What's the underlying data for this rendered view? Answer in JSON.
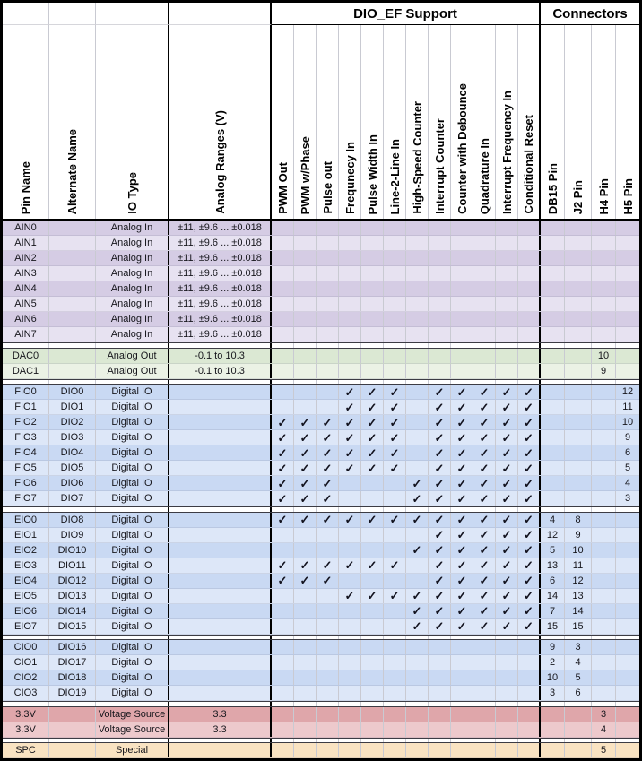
{
  "table": {
    "group_headers": {
      "dio_ef": "DIO_EF Support",
      "connectors": "Connectors"
    },
    "check_glyph": "✓",
    "columns": [
      {
        "id": "pin-name",
        "label": "Pin Name"
      },
      {
        "id": "alternate-name",
        "label": "Alternate Name"
      },
      {
        "id": "io-type",
        "label": "IO Type"
      },
      {
        "id": "analog-ranges",
        "label": "Analog Ranges (V)"
      },
      {
        "id": "pwm-out",
        "label": "PWM Out"
      },
      {
        "id": "pwm-w-phase",
        "label": "PWM w/Phase"
      },
      {
        "id": "pulse-out",
        "label": "Pulse out"
      },
      {
        "id": "frequency-in",
        "label": "Frequnecy In"
      },
      {
        "id": "pulse-width-in",
        "label": "Pulse Width In"
      },
      {
        "id": "line-2-line-in",
        "label": "Line-2-Line In"
      },
      {
        "id": "high-speed-counter",
        "label": "High-Speed Counter"
      },
      {
        "id": "interrupt-counter",
        "label": "Interrupt Counter"
      },
      {
        "id": "counter-with-debounce",
        "label": "Counter with Debounce"
      },
      {
        "id": "quadrature-in",
        "label": "Quadrature In"
      },
      {
        "id": "interrupt-frequency-in",
        "label": "Interrupt Frequency In"
      },
      {
        "id": "conditional-reset",
        "label": "Conditional Reset"
      },
      {
        "id": "db15-pin",
        "label": "DB15 Pin"
      },
      {
        "id": "j2-pin",
        "label": "J2 Pin"
      },
      {
        "id": "h4-pin",
        "label": "H4 Pin"
      },
      {
        "id": "h5-pin",
        "label": "H5 Pin"
      }
    ],
    "themes": {
      "purple": {
        "dark": "#D5CCE4",
        "light": "#E7E2F1"
      },
      "green": {
        "dark": "#DBE8D3",
        "light": "#EBF2E5"
      },
      "blue": {
        "dark": "#C9D9F3",
        "light": "#DDE7F8"
      },
      "pink": {
        "dark": "#DFA6AA",
        "light": "#EDC9CC"
      },
      "tan": {
        "dark": "#F9E3C2",
        "light": "#F9E3C2"
      }
    },
    "groups": [
      {
        "name": "analog-in",
        "theme": "purple",
        "rows": [
          {
            "pin": "AIN0",
            "type": "Analog In",
            "range": "±11, ±9.6 ... ±0.018"
          },
          {
            "pin": "AIN1",
            "type": "Analog In",
            "range": "±11, ±9.6 ... ±0.018"
          },
          {
            "pin": "AIN2",
            "type": "Analog In",
            "range": "±11, ±9.6 ... ±0.018"
          },
          {
            "pin": "AIN3",
            "type": "Analog In",
            "range": "±11, ±9.6 ... ±0.018"
          },
          {
            "pin": "AIN4",
            "type": "Analog In",
            "range": "±11, ±9.6 ... ±0.018"
          },
          {
            "pin": "AIN5",
            "type": "Analog In",
            "range": "±11, ±9.6 ... ±0.018"
          },
          {
            "pin": "AIN6",
            "type": "Analog In",
            "range": "±11, ±9.6 ... ±0.018"
          },
          {
            "pin": "AIN7",
            "type": "Analog In",
            "range": "±11, ±9.6 ... ±0.018"
          }
        ]
      },
      {
        "name": "analog-out",
        "theme": "green",
        "rows": [
          {
            "pin": "DAC0",
            "type": "Analog Out",
            "range": "-0.1 to 10.3",
            "h4": "10"
          },
          {
            "pin": "DAC1",
            "type": "Analog Out",
            "range": "-0.1 to 10.3",
            "h4": "9"
          }
        ]
      },
      {
        "name": "fio",
        "theme": "blue",
        "rows": [
          {
            "pin": "FIO0",
            "alt": "DIO0",
            "type": "Digital IO",
            "checks": [
              0,
              0,
              0,
              1,
              1,
              1,
              0,
              1,
              1,
              1,
              1,
              1
            ],
            "h5": "12"
          },
          {
            "pin": "FIO1",
            "alt": "DIO1",
            "type": "Digital IO",
            "checks": [
              0,
              0,
              0,
              1,
              1,
              1,
              0,
              1,
              1,
              1,
              1,
              1
            ],
            "h5": "11"
          },
          {
            "pin": "FIO2",
            "alt": "DIO2",
            "type": "Digital IO",
            "checks": [
              1,
              1,
              1,
              1,
              1,
              1,
              0,
              1,
              1,
              1,
              1,
              1
            ],
            "h5": "10"
          },
          {
            "pin": "FIO3",
            "alt": "DIO3",
            "type": "Digital IO",
            "checks": [
              1,
              1,
              1,
              1,
              1,
              1,
              0,
              1,
              1,
              1,
              1,
              1
            ],
            "h5": "9"
          },
          {
            "pin": "FIO4",
            "alt": "DIO4",
            "type": "Digital IO",
            "checks": [
              1,
              1,
              1,
              1,
              1,
              1,
              0,
              1,
              1,
              1,
              1,
              1
            ],
            "h5": "6"
          },
          {
            "pin": "FIO5",
            "alt": "DIO5",
            "type": "Digital IO",
            "checks": [
              1,
              1,
              1,
              1,
              1,
              1,
              0,
              1,
              1,
              1,
              1,
              1
            ],
            "h5": "5"
          },
          {
            "pin": "FIO6",
            "alt": "DIO6",
            "type": "Digital IO",
            "checks": [
              1,
              1,
              1,
              0,
              0,
              0,
              1,
              1,
              1,
              1,
              1,
              1
            ],
            "h5": "4"
          },
          {
            "pin": "FIO7",
            "alt": "DIO7",
            "type": "Digital IO",
            "checks": [
              1,
              1,
              1,
              0,
              0,
              0,
              1,
              1,
              1,
              1,
              1,
              1
            ],
            "h5": "3"
          }
        ]
      },
      {
        "name": "eio",
        "theme": "blue",
        "rows": [
          {
            "pin": "EIO0",
            "alt": "DIO8",
            "type": "Digital IO",
            "checks": [
              1,
              1,
              1,
              1,
              1,
              1,
              1,
              1,
              1,
              1,
              1,
              1
            ],
            "db15": "4",
            "j2": "8"
          },
          {
            "pin": "EIO1",
            "alt": "DIO9",
            "type": "Digital IO",
            "checks": [
              0,
              0,
              0,
              0,
              0,
              0,
              0,
              1,
              1,
              1,
              1,
              1
            ],
            "db15": "12",
            "j2": "9"
          },
          {
            "pin": "EIO2",
            "alt": "DIO10",
            "type": "Digital IO",
            "checks": [
              0,
              0,
              0,
              0,
              0,
              0,
              1,
              1,
              1,
              1,
              1,
              1
            ],
            "db15": "5",
            "j2": "10"
          },
          {
            "pin": "EIO3",
            "alt": "DIO11",
            "type": "Digital IO",
            "checks": [
              1,
              1,
              1,
              1,
              1,
              1,
              0,
              1,
              1,
              1,
              1,
              1
            ],
            "db15": "13",
            "j2": "11"
          },
          {
            "pin": "EIO4",
            "alt": "DIO12",
            "type": "Digital IO",
            "checks": [
              1,
              1,
              1,
              0,
              0,
              0,
              0,
              1,
              1,
              1,
              1,
              1
            ],
            "db15": "6",
            "j2": "12"
          },
          {
            "pin": "EIO5",
            "alt": "DIO13",
            "type": "Digital IO",
            "checks": [
              0,
              0,
              0,
              1,
              1,
              1,
              1,
              1,
              1,
              1,
              1,
              1
            ],
            "db15": "14",
            "j2": "13"
          },
          {
            "pin": "EIO6",
            "alt": "DIO14",
            "type": "Digital IO",
            "checks": [
              0,
              0,
              0,
              0,
              0,
              0,
              1,
              1,
              1,
              1,
              1,
              1
            ],
            "db15": "7",
            "j2": "14"
          },
          {
            "pin": "EIO7",
            "alt": "DIO15",
            "type": "Digital IO",
            "checks": [
              0,
              0,
              0,
              0,
              0,
              0,
              1,
              1,
              1,
              1,
              1,
              1
            ],
            "db15": "15",
            "j2": "15"
          }
        ]
      },
      {
        "name": "cio",
        "theme": "blue",
        "rows": [
          {
            "pin": "CIO0",
            "alt": "DIO16",
            "type": "Digital IO",
            "db15": "9",
            "j2": "3"
          },
          {
            "pin": "CIO1",
            "alt": "DIO17",
            "type": "Digital IO",
            "db15": "2",
            "j2": "4"
          },
          {
            "pin": "CIO2",
            "alt": "DIO18",
            "type": "Digital IO",
            "db15": "10",
            "j2": "5"
          },
          {
            "pin": "CIO3",
            "alt": "DIO19",
            "type": "Digital IO",
            "db15": "3",
            "j2": "6"
          }
        ]
      },
      {
        "name": "power",
        "theme": "pink",
        "rows": [
          {
            "pin": "3.3V",
            "type": "Voltage Source",
            "range": "3.3",
            "h4": "3"
          },
          {
            "pin": "3.3V",
            "type": "Voltage Source",
            "range": "3.3",
            "h4": "4"
          }
        ]
      },
      {
        "name": "special",
        "theme": "tan",
        "rows": [
          {
            "pin": "SPC",
            "type": "Special",
            "h4": "5"
          }
        ]
      }
    ]
  }
}
